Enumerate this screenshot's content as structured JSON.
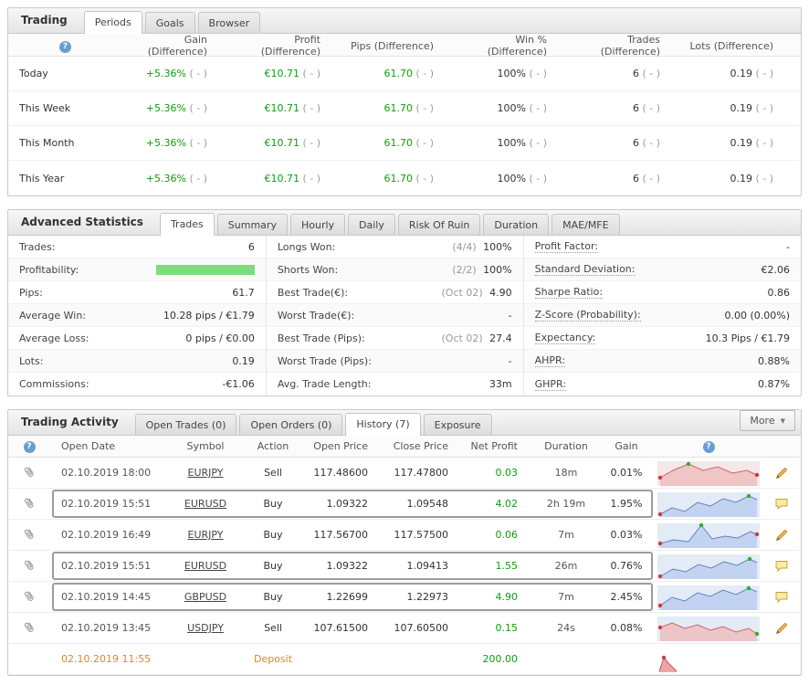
{
  "ui": {
    "help": "?",
    "caret": "▼"
  },
  "colors": {
    "green": "#0da00d",
    "orange": "#e2871c",
    "muted": "#9b9b9b",
    "highlight_border": "#9c9c9c",
    "profit_bar": "#7edc7e"
  },
  "periods": {
    "title": "Trading",
    "tabs": [
      {
        "label": "Periods",
        "cls": "active"
      },
      {
        "label": "Goals",
        "cls": ""
      },
      {
        "label": "Browser",
        "cls": ""
      }
    ],
    "headers": [
      {
        "label": "Gain (Difference)"
      },
      {
        "label": "Profit (Difference)"
      },
      {
        "label": "Pips (Difference)"
      },
      {
        "label": "Win % (Difference)"
      },
      {
        "label": "Trades (Difference)"
      },
      {
        "label": "Lots (Difference)"
      }
    ],
    "rows": [
      {
        "label": "Today",
        "cells": [
          {
            "v": "+5.36%",
            "d": "( - )",
            "cls": "green"
          },
          {
            "v": "€10.71",
            "d": "( - )",
            "cls": "green"
          },
          {
            "v": "61.70",
            "d": "( - )",
            "cls": "green"
          },
          {
            "v": "100%",
            "d": "( - )",
            "cls": "dark"
          },
          {
            "v": "6",
            "d": "( - )",
            "cls": "dark"
          },
          {
            "v": "0.19",
            "d": "( - )",
            "cls": "dark"
          }
        ]
      },
      {
        "label": "This Week",
        "cells": [
          {
            "v": "+5.36%",
            "d": "( - )",
            "cls": "green"
          },
          {
            "v": "€10.71",
            "d": "( - )",
            "cls": "green"
          },
          {
            "v": "61.70",
            "d": "( - )",
            "cls": "green"
          },
          {
            "v": "100%",
            "d": "( - )",
            "cls": "dark"
          },
          {
            "v": "6",
            "d": "( - )",
            "cls": "dark"
          },
          {
            "v": "0.19",
            "d": "( - )",
            "cls": "dark"
          }
        ]
      },
      {
        "label": "This Month",
        "cells": [
          {
            "v": "+5.36%",
            "d": "( - )",
            "cls": "green"
          },
          {
            "v": "€10.71",
            "d": "( - )",
            "cls": "green"
          },
          {
            "v": "61.70",
            "d": "( - )",
            "cls": "green"
          },
          {
            "v": "100%",
            "d": "( - )",
            "cls": "dark"
          },
          {
            "v": "6",
            "d": "( - )",
            "cls": "dark"
          },
          {
            "v": "0.19",
            "d": "( - )",
            "cls": "dark"
          }
        ]
      },
      {
        "label": "This Year",
        "cells": [
          {
            "v": "+5.36%",
            "d": "( - )",
            "cls": "green"
          },
          {
            "v": "€10.71",
            "d": "( - )",
            "cls": "green"
          },
          {
            "v": "61.70",
            "d": "( - )",
            "cls": "green"
          },
          {
            "v": "100%",
            "d": "( - )",
            "cls": "dark"
          },
          {
            "v": "6",
            "d": "( - )",
            "cls": "dark"
          },
          {
            "v": "0.19",
            "d": "( - )",
            "cls": "dark"
          }
        ]
      }
    ]
  },
  "stats": {
    "title": "Advanced Statistics",
    "tabs": [
      {
        "label": "Trades",
        "cls": "active"
      },
      {
        "label": "Summary",
        "cls": ""
      },
      {
        "label": "Hourly",
        "cls": ""
      },
      {
        "label": "Daily",
        "cls": ""
      },
      {
        "label": "Risk Of Ruin",
        "cls": ""
      },
      {
        "label": "Duration",
        "cls": ""
      },
      {
        "label": "MAE/MFE",
        "cls": ""
      }
    ],
    "col1": [
      {
        "label": "Trades:",
        "value": "6",
        "cls": ""
      },
      {
        "label": "Profitability:",
        "value": "",
        "cls": "bar-row"
      },
      {
        "label": "Pips:",
        "value": "61.7",
        "cls": ""
      },
      {
        "label": "Average Win:",
        "value": "10.28 pips / €1.79",
        "cls": ""
      },
      {
        "label": "Average Loss:",
        "value": "0 pips / €0.00",
        "cls": ""
      },
      {
        "label": "Lots:",
        "value": "0.19",
        "cls": ""
      },
      {
        "label": "Commissions:",
        "value": "-€1.06",
        "cls": ""
      }
    ],
    "col2": [
      {
        "label": "Longs Won:",
        "pre": "(4/4)",
        "value": "100%"
      },
      {
        "label": "Shorts Won:",
        "pre": "(2/2)",
        "value": "100%"
      },
      {
        "label": "Best Trade(€):",
        "pre": "(Oct 02)",
        "value": "4.90"
      },
      {
        "label": "Worst Trade(€):",
        "pre": "",
        "value": "-"
      },
      {
        "label": "Best Trade (Pips):",
        "pre": "(Oct 02)",
        "value": "27.4"
      },
      {
        "label": "Worst Trade (Pips):",
        "pre": "",
        "value": "-"
      },
      {
        "label": "Avg. Trade Length:",
        "pre": "",
        "value": "33m"
      }
    ],
    "col3": [
      {
        "label": "Profit Factor:",
        "value": "-"
      },
      {
        "label": "Standard Deviation:",
        "value": "€2.06"
      },
      {
        "label": "Sharpe Ratio:",
        "value": "0.86"
      },
      {
        "label": "Z-Score (Probability):",
        "value": "0.00 (0.00%)"
      },
      {
        "label": "Expectancy:",
        "value": "10.3 Pips / €1.79"
      },
      {
        "label": "AHPR:",
        "value": "0.88%"
      },
      {
        "label": "GHPR:",
        "value": "0.87%"
      }
    ]
  },
  "activity": {
    "title": "Trading Activity",
    "tabs": [
      {
        "label": "Open Trades (0)",
        "cls": ""
      },
      {
        "label": "Open Orders (0)",
        "cls": ""
      },
      {
        "label": "History (7)",
        "cls": "active"
      },
      {
        "label": "Exposure",
        "cls": ""
      }
    ],
    "more_label": "More",
    "headers": [
      "Open Date",
      "Symbol",
      "Action",
      "Open Price",
      "Close Price",
      "Net Profit",
      "Duration",
      "Gain"
    ],
    "rows": [
      {
        "date": "02.10.2019 18:00",
        "symbol": "EURJPY",
        "action": "Sell",
        "open": "117.48600",
        "close": "117.47800",
        "profit": "0.03",
        "duration": "18m",
        "gain": "0.01%",
        "cls": "icon-pencil",
        "spark": {
          "bg": "#f4e8e8",
          "fill": "#eebbbb",
          "line": "#cc6666",
          "pts": [
            [
              3,
              20
            ],
            [
              17,
              12
            ],
            [
              34,
              5
            ],
            [
              50,
              12
            ],
            [
              66,
              8
            ],
            [
              82,
              15
            ],
            [
              98,
              12
            ],
            [
              109,
              17
            ]
          ],
          "dots": [
            [
              3,
              20,
              "#d03a3a"
            ],
            [
              34,
              5,
              "#2fae2f"
            ],
            [
              109,
              17,
              "#d03a3a"
            ]
          ]
        }
      },
      {
        "date": "02.10.2019 15:51",
        "symbol": "EURUSD",
        "action": "Buy",
        "open": "1.09322",
        "close": "1.09548",
        "profit": "4.02",
        "duration": "2h 19m",
        "gain": "1.95%",
        "cls": "highlighted icon-note",
        "spark": {
          "bg": "#e3ebf7",
          "fill": "#b9cdf0",
          "line": "#5f83b8",
          "pts": [
            [
              3,
              26
            ],
            [
              16,
              19
            ],
            [
              30,
              23
            ],
            [
              44,
              13
            ],
            [
              58,
              17
            ],
            [
              72,
              9
            ],
            [
              86,
              13
            ],
            [
              100,
              6
            ],
            [
              109,
              10
            ]
          ],
          "dots": [
            [
              3,
              26,
              "#d03a3a"
            ],
            [
              100,
              6,
              "#2fae2f"
            ]
          ]
        }
      },
      {
        "date": "02.10.2019 16:49",
        "symbol": "EURJPY",
        "action": "Buy",
        "open": "117.56700",
        "close": "117.57500",
        "profit": "0.06",
        "duration": "7m",
        "gain": "0.03%",
        "cls": "icon-pencil",
        "spark": {
          "bg": "#e3ebf7",
          "fill": "#b9cdf0",
          "line": "#5f83b8",
          "pts": [
            [
              3,
              24
            ],
            [
              18,
              20
            ],
            [
              34,
              22
            ],
            [
              48,
              4
            ],
            [
              60,
              19
            ],
            [
              74,
              16
            ],
            [
              88,
              18
            ],
            [
              102,
              11
            ],
            [
              109,
              14
            ]
          ],
          "dots": [
            [
              3,
              24,
              "#d03a3a"
            ],
            [
              48,
              4,
              "#2fae2f"
            ],
            [
              109,
              14,
              "#d03a3a"
            ]
          ]
        }
      },
      {
        "date": "02.10.2019 15:51",
        "symbol": "EURUSD",
        "action": "Buy",
        "open": "1.09322",
        "close": "1.09413",
        "profit": "1.55",
        "duration": "26m",
        "gain": "0.76%",
        "cls": "highlighted icon-note",
        "spark": {
          "bg": "#e3ebf7",
          "fill": "#b9cdf0",
          "line": "#5f83b8",
          "pts": [
            [
              3,
              26
            ],
            [
              17,
              18
            ],
            [
              31,
              21
            ],
            [
              45,
              13
            ],
            [
              59,
              17
            ],
            [
              73,
              10
            ],
            [
              87,
              14
            ],
            [
              101,
              7
            ],
            [
              109,
              11
            ]
          ],
          "dots": [
            [
              3,
              26,
              "#d03a3a"
            ],
            [
              101,
              7,
              "#2fae2f"
            ]
          ]
        }
      },
      {
        "date": "02.10.2019 14:45",
        "symbol": "GBPUSD",
        "action": "Buy",
        "open": "1.22699",
        "close": "1.22973",
        "profit": "4.90",
        "duration": "7m",
        "gain": "2.45%",
        "cls": "highlighted icon-note",
        "spark": {
          "bg": "#e3ebf7",
          "fill": "#b9cdf0",
          "line": "#5f83b8",
          "pts": [
            [
              3,
              24
            ],
            [
              16,
              15
            ],
            [
              30,
              19
            ],
            [
              44,
              10
            ],
            [
              58,
              14
            ],
            [
              72,
              7
            ],
            [
              86,
              12
            ],
            [
              100,
              5
            ],
            [
              109,
              9
            ]
          ],
          "dots": [
            [
              3,
              24,
              "#d03a3a"
            ],
            [
              100,
              5,
              "#2fae2f"
            ]
          ]
        }
      },
      {
        "date": "02.10.2019 13:45",
        "symbol": "USDJPY",
        "action": "Sell",
        "open": "107.61500",
        "close": "107.60500",
        "profit": "0.15",
        "duration": "24s",
        "gain": "0.08%",
        "cls": "icon-pencil",
        "spark": {
          "bg": "#e3ebf7",
          "fill": "#eebbbb",
          "line": "#cc6666",
          "pts": [
            [
              3,
              14
            ],
            [
              16,
              9
            ],
            [
              30,
              15
            ],
            [
              44,
              11
            ],
            [
              58,
              17
            ],
            [
              72,
              13
            ],
            [
              86,
              19
            ],
            [
              100,
              15
            ],
            [
              109,
              21
            ]
          ],
          "dots": [
            [
              3,
              14,
              "#d03a3a"
            ],
            [
              109,
              21,
              "#2fae2f"
            ]
          ]
        }
      },
      {
        "date": "02.10.2019 11:55",
        "symbol": "",
        "action": "Deposit",
        "open": "",
        "close": "",
        "profit": "200.00",
        "duration": "",
        "gain": "",
        "cls": "deposit",
        "spark": {
          "bg": "",
          "fill": "#e89090",
          "line": "#cc5555",
          "pts": [
            [
              2,
              28
            ],
            [
              7,
              13
            ],
            [
              12,
              19
            ],
            [
              17,
              24
            ],
            [
              21,
              28
            ]
          ],
          "dots": [
            [
              7,
              13,
              "#d03a3a"
            ]
          ]
        }
      }
    ]
  }
}
